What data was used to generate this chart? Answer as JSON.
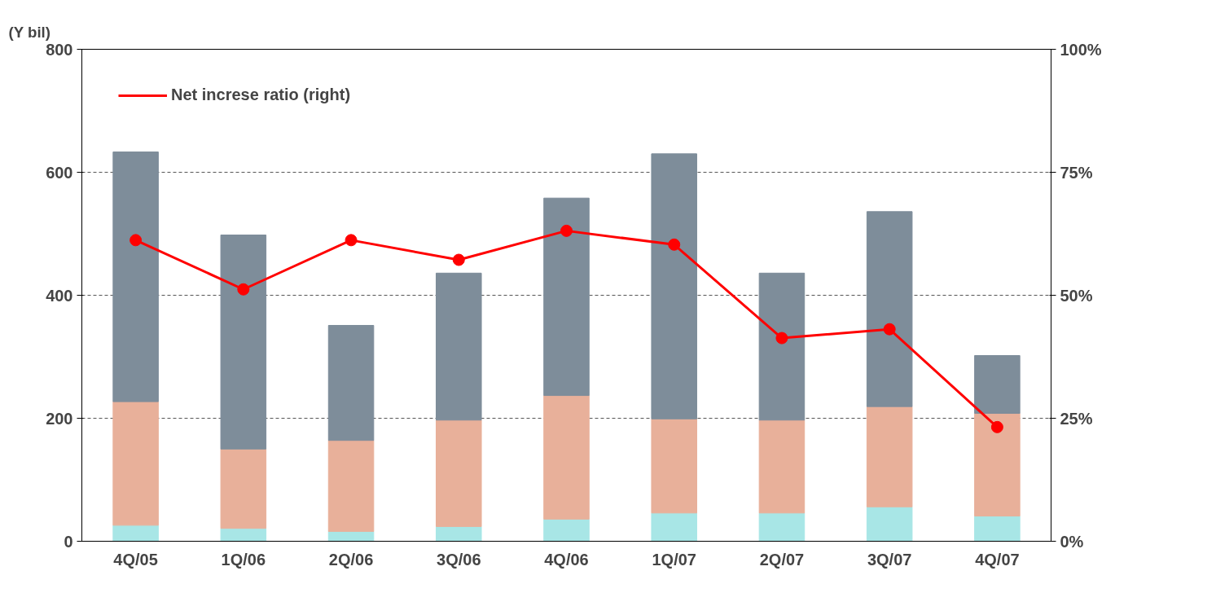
{
  "chart_data": {
    "type": "bar",
    "ylabel": "(Y bil)",
    "stacked": true,
    "categories": [
      "4Q/05",
      "1Q/06",
      "2Q/06",
      "3Q/06",
      "4Q/06",
      "1Q/07",
      "2Q/07",
      "3Q/07",
      "4Q/07"
    ],
    "series": [
      {
        "color": "#a8e6e6",
        "values": [
          26,
          21,
          16,
          24,
          36,
          46,
          46,
          56,
          41
        ]
      },
      {
        "color": "#e8b09a",
        "values": [
          201,
          129,
          148,
          173,
          201,
          153,
          151,
          163,
          167
        ]
      },
      {
        "color": "#7e8d9a",
        "values": [
          406,
          348,
          187,
          239,
          321,
          431,
          239,
          317,
          94
        ]
      },
      {
        "type": "line",
        "axis": "y2",
        "name": "Net increse ratio (right)",
        "color": "#ff0000",
        "marker": "circle",
        "values": [
          61.2,
          51.2,
          61.2,
          57.2,
          63.1,
          60.3,
          41.3,
          43.1,
          23.2
        ]
      }
    ],
    "ylim": [
      0,
      800
    ],
    "yticks": [
      0,
      200,
      400,
      600,
      800
    ],
    "y2lim": [
      0,
      100
    ],
    "y2ticks": [
      {
        "value": 0,
        "label": "0%"
      },
      {
        "value": 25,
        "label": "25%"
      },
      {
        "value": 50,
        "label": "50%"
      },
      {
        "value": 75,
        "label": "75%"
      },
      {
        "value": 100,
        "label": "100%"
      }
    ],
    "grid": "y",
    "legend": "top left"
  }
}
